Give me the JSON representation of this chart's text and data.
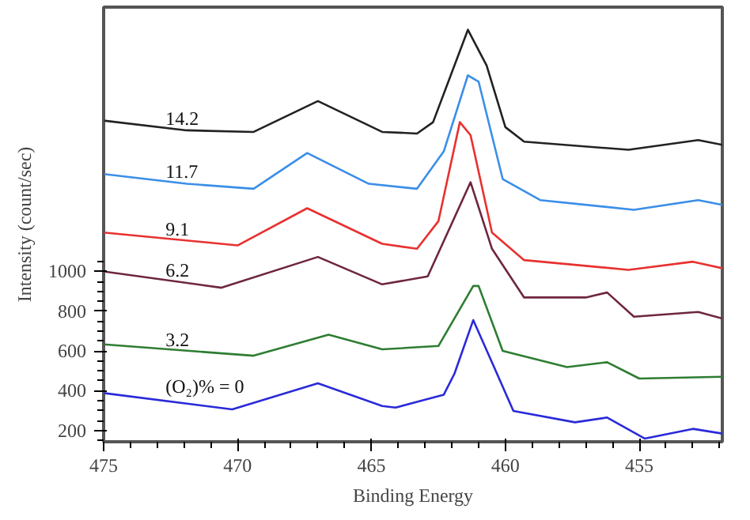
{
  "chart_data": {
    "type": "line",
    "xlabel": "Binding Energy",
    "ylabel": "Intensity (count/sec)",
    "xlim": [
      475,
      451.9
    ],
    "ylim": [
      143,
      2330
    ],
    "xticks": [
      475,
      470,
      465,
      460,
      455
    ],
    "yticks": [
      200,
      400,
      600,
      800,
      1000
    ],
    "grid": false,
    "series": [
      {
        "name": "14.2",
        "color": "#222222",
        "x": [
          475,
          471.9,
          469.4,
          467.0,
          464.6,
          463.3,
          462.7,
          461.4,
          460.7,
          460.0,
          459.3,
          455.4,
          452.8,
          451.9
        ],
        "values": [
          1759,
          1710,
          1702,
          1857,
          1702,
          1694,
          1751,
          2216,
          2036,
          1726,
          1653,
          1612,
          1661,
          1637
        ]
      },
      {
        "name": "11.7",
        "color": "#3b8ee8",
        "x": [
          475,
          471.9,
          469.4,
          467.4,
          465.1,
          463.3,
          462.3,
          461.4,
          461.0,
          460.1,
          458.7,
          455.2,
          452.8,
          451.9
        ],
        "values": [
          1490,
          1441,
          1416,
          1596,
          1441,
          1416,
          1604,
          1987,
          1955,
          1465,
          1359,
          1310,
          1359,
          1335
        ]
      },
      {
        "name": "9.1",
        "color": "#e8312f",
        "x": [
          475,
          470,
          467.4,
          464.6,
          463.3,
          462.5,
          461.7,
          461.3,
          460.5,
          459.3,
          455.4,
          453.0,
          451.9
        ],
        "values": [
          1196,
          1131,
          1318,
          1139,
          1114,
          1253,
          1751,
          1686,
          1196,
          1057,
          1008,
          1049,
          1016
        ]
      },
      {
        "name": "6.2",
        "color": "#6e2640",
        "x": [
          475,
          470.6,
          467.0,
          464.6,
          462.9,
          461.3,
          460.5,
          459.3,
          457.0,
          456.2,
          455.2,
          452.8,
          451.9
        ],
        "values": [
          1000,
          918,
          1073,
          935,
          975,
          1449,
          1114,
          869,
          869,
          894,
          772,
          796,
          763
        ]
      },
      {
        "name": "3.2",
        "color": "#2e7d32",
        "x": [
          475,
          469.4,
          466.6,
          464.6,
          462.5,
          461.2,
          461.0,
          460.1,
          457.7,
          456.2,
          455.0,
          451.9
        ],
        "values": [
          633,
          576,
          682,
          608,
          625,
          927,
          927,
          600,
          519,
          543,
          461,
          470
        ]
      },
      {
        "name": "(O₂)% = 0",
        "color": "#2a2ad8",
        "x": [
          475,
          470.2,
          467.0,
          464.6,
          464.1,
          462.3,
          461.9,
          461.2,
          460.5,
          459.7,
          457.4,
          456.2,
          454.8,
          453.0,
          451.9
        ],
        "values": [
          388,
          306,
          437,
          323,
          315,
          380,
          486,
          755,
          543,
          298,
          241,
          265,
          159,
          208,
          184
        ]
      }
    ]
  }
}
